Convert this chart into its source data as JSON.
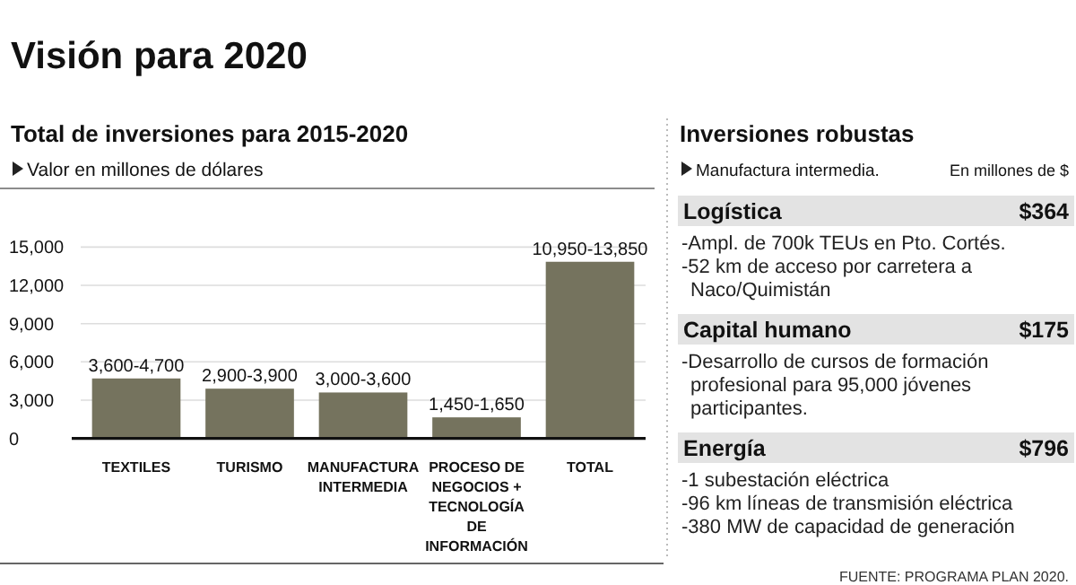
{
  "chart_data": [
    {
      "type": "bar",
      "title": "Visión para 2020",
      "subtitle": "Total de inversiones para 2015-2020",
      "ylabel": "Valor en millones de dólares",
      "categories": [
        "TEXTILES",
        "TURISMO",
        "MANUFACTURA INTERMEDIA",
        "PROCESO DE NEGOCIOS + TECNOLOGÍA DE INFORMACIÓN",
        "TOTAL"
      ],
      "values": [
        4700,
        3900,
        3600,
        1650,
        13850
      ],
      "value_labels": [
        "3,600-4,700",
        "2,900-3,900",
        "3,000-3,600",
        "1,450-1,650",
        "10,950-13,850"
      ],
      "color": "#75735e",
      "ylim": [
        0,
        15000
      ],
      "yticks": [
        0,
        {
          "value": 3000,
          "label": "3,000"
        },
        {
          "value": 6000,
          "label": "6,000"
        },
        {
          "value": 9000,
          "label": "9,000"
        },
        {
          "value": 12000,
          "label": "12,000"
        },
        {
          "value": 15000,
          "label": "15,000"
        }
      ],
      "grid": "y",
      "annotations": [
        "FUENTE: PROGRAMA PLAN 2020."
      ]
    },
    {
      "type": "other",
      "title": "Inversiones robustas",
      "subtitle": "Manufactura intermedia.",
      "annotations": [
        "En millones de $"
      ]
    },
    {
      "type": "other",
      "title": "Logística",
      "values": [
        364
      ],
      "value_labels": [
        "$364"
      ],
      "annotations": [
        "-Ampl. de 700k TEUs en Pto. Cortés.",
        "-52 km de acceso por carretera a Naco/Quimistán"
      ]
    },
    {
      "type": "other",
      "title": "Capital humano",
      "values": [
        175
      ],
      "value_labels": [
        "$175"
      ],
      "annotations": [
        "-Desarrollo de cursos de formación profesional para 95,000 jóvenes participantes."
      ]
    },
    {
      "type": "other",
      "title": "Energía",
      "values": [
        796
      ],
      "value_labels": [
        "$796"
      ],
      "annotations": [
        "-1 subestación eléctrica",
        "-96 km líneas de transmisión eléctrica",
        "-380 MW de capacidad de generación"
      ]
    }
  ]
}
